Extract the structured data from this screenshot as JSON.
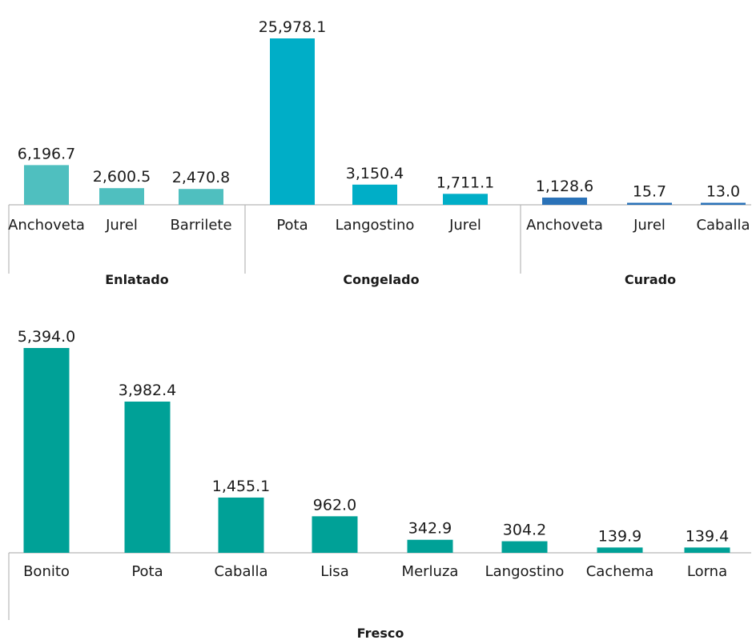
{
  "chart_data": [
    {
      "type": "bar",
      "groups": [
        {
          "name": "Enlatado",
          "color": "#4fbfbf",
          "categories": [
            "Anchoveta",
            "Jurel",
            "Barrilete"
          ],
          "values": [
            6196.7,
            2600.5,
            2470.8
          ],
          "labels": [
            "6,196.7",
            "2,600.5",
            "2,470.8"
          ]
        },
        {
          "name": "Congelado",
          "color": "#00aec7",
          "categories": [
            "Pota",
            "Langostino",
            "Jurel"
          ],
          "values": [
            25978.1,
            3150.4,
            1711.1
          ],
          "labels": [
            "25,978.1",
            "3,150.4",
            "1,711.1"
          ]
        },
        {
          "name": "Curado",
          "color": "#2a72b8",
          "categories": [
            "Anchoveta",
            "Jurel",
            "Caballa"
          ],
          "values": [
            1128.6,
            15.7,
            13.0
          ],
          "labels": [
            "1,128.6",
            "15.7",
            "13.0"
          ]
        }
      ]
    },
    {
      "type": "bar",
      "groups": [
        {
          "name": "Fresco",
          "color": "#00a197",
          "categories": [
            "Bonito",
            "Pota",
            "Caballa",
            "Lisa",
            "Merluza",
            "Langostino",
            "Cachema",
            "Lorna"
          ],
          "values": [
            5394.0,
            3982.4,
            1455.1,
            962.0,
            342.9,
            304.2,
            139.9,
            139.4
          ],
          "labels": [
            "5,394.0",
            "3,982.4",
            "1,455.1",
            "962.0",
            "342.9",
            "304.2",
            "139.9",
            "139.4"
          ]
        }
      ]
    }
  ]
}
